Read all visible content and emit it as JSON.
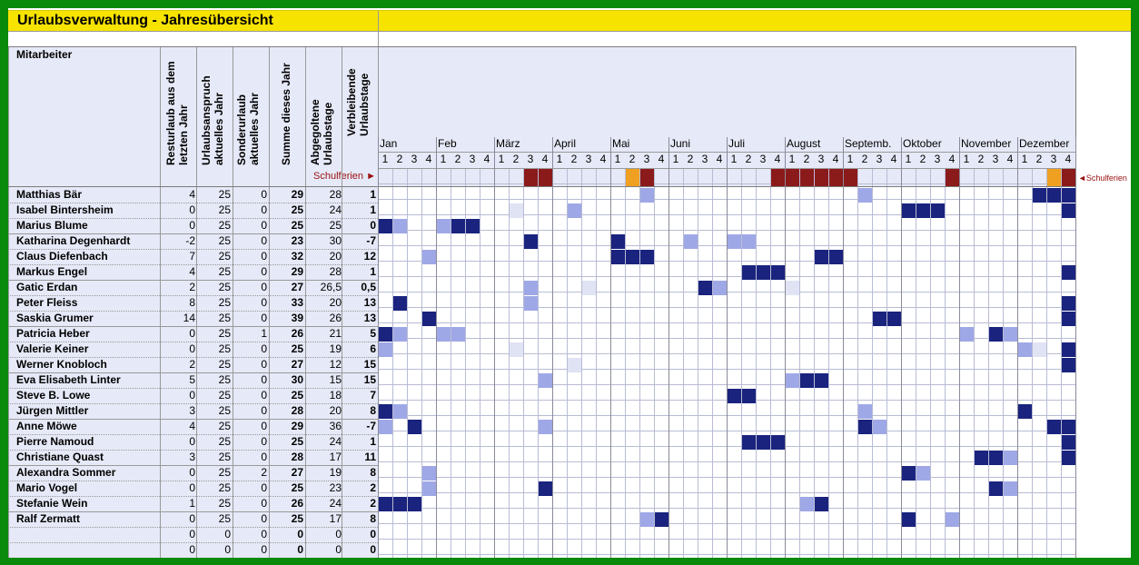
{
  "title": "Urlaubsverwaltung - Jahresübersicht",
  "headers": {
    "mitarbeiter": "Mitarbeiter",
    "resturlaub": [
      "Resturlaub aus dem",
      "letzten Jahr"
    ],
    "anspruch": [
      "Urlaubsanspruch",
      "aktuelles Jahr"
    ],
    "sonder": [
      "Sonderurlaub",
      "aktuelles Jahr"
    ],
    "summe": [
      "Summe dieses Jahr"
    ],
    "abgegolten": [
      "Abgegoltene",
      "Urlaubstage"
    ],
    "verbleibend": [
      "Verbleibende",
      "Urlaubstage"
    ]
  },
  "schulferien_label": "Schulferien ►",
  "schulferien_label_right": "◄Schulferien",
  "months": [
    "Jan",
    "Feb",
    "März",
    "April",
    "Mai",
    "Juni",
    "Juli",
    "August",
    "Septemb.",
    "Oktober",
    "November",
    "Dezember"
  ],
  "week_labels": [
    "1",
    "2",
    "3",
    "4",
    "1",
    "2",
    "3",
    "4",
    "1",
    "2",
    "3",
    "4",
    "1",
    "2",
    "3",
    "4",
    "1",
    "2",
    "3",
    "4",
    "1",
    "2",
    "3",
    "4",
    "1",
    "2",
    "3",
    "4",
    "1",
    "2",
    "3",
    "4",
    "1",
    "2",
    "3",
    "4",
    "1",
    "2",
    "3",
    "4",
    "1",
    "2",
    "3",
    "4",
    "1",
    "2",
    "3",
    "4"
  ],
  "colors": {
    "schulferien": "#8b1a1a",
    "schulferien_orange": "#f0a020",
    "urlaub_dark": "#1a237e",
    "urlaub_light": "#9fa8e6",
    "urlaub_faint": "#e0e3f4"
  },
  "schulferien_weeks": [
    {
      "week": 10,
      "type": "dark"
    },
    {
      "week": 11,
      "type": "dark"
    },
    {
      "week": 17,
      "type": "orange"
    },
    {
      "week": 18,
      "type": "dark"
    },
    {
      "week": 27,
      "type": "dark"
    },
    {
      "week": 28,
      "type": "dark"
    },
    {
      "week": 29,
      "type": "dark"
    },
    {
      "week": 30,
      "type": "dark"
    },
    {
      "week": 31,
      "type": "dark"
    },
    {
      "week": 32,
      "type": "dark"
    },
    {
      "week": 39,
      "type": "dark"
    },
    {
      "week": 46,
      "type": "orange"
    },
    {
      "week": 47,
      "type": "dark"
    }
  ],
  "employees": [
    {
      "name": "Matthias Bär",
      "rest": "4",
      "anspruch": "25",
      "sonder": "0",
      "summe": "29",
      "abgegolten": "28",
      "verbleibend": "1",
      "dark": [
        45,
        46,
        47
      ],
      "light": [
        18,
        33
      ],
      "faint": []
    },
    {
      "name": "Isabel Bintersheim",
      "rest": "0",
      "anspruch": "25",
      "sonder": "0",
      "summe": "25",
      "abgegolten": "24",
      "verbleibend": "1",
      "dark": [
        36,
        37,
        38,
        47
      ],
      "light": [
        13
      ],
      "faint": [
        9
      ]
    },
    {
      "name": "Marius Blume",
      "rest": "0",
      "anspruch": "25",
      "sonder": "0",
      "summe": "25",
      "abgegolten": "25",
      "verbleibend": "0",
      "dark": [
        0,
        5,
        6
      ],
      "light": [
        1,
        4
      ],
      "faint": []
    },
    {
      "name": "Katharina Degenhardt",
      "rest": "-2",
      "anspruch": "25",
      "sonder": "0",
      "summe": "23",
      "abgegolten": "30",
      "verbleibend": "-7",
      "dark": [
        10,
        16
      ],
      "light": [
        21,
        24,
        25
      ],
      "faint": []
    },
    {
      "name": "Claus Diefenbach",
      "rest": "7",
      "anspruch": "25",
      "sonder": "0",
      "summe": "32",
      "abgegolten": "20",
      "verbleibend": "12",
      "dark": [
        16,
        17,
        18,
        30,
        31
      ],
      "light": [
        3
      ],
      "faint": []
    },
    {
      "name": "Markus Engel",
      "rest": "4",
      "anspruch": "25",
      "sonder": "0",
      "summe": "29",
      "abgegolten": "28",
      "verbleibend": "1",
      "dark": [
        25,
        26,
        27,
        47
      ],
      "light": [],
      "faint": []
    },
    {
      "name": "Gatic Erdan",
      "rest": "2",
      "anspruch": "25",
      "sonder": "0",
      "summe": "27",
      "abgegolten": "26,5",
      "verbleibend": "0,5",
      "dark": [
        22
      ],
      "light": [
        10,
        23
      ],
      "faint": [
        14,
        28
      ]
    },
    {
      "name": "Peter Fleiss",
      "rest": "8",
      "anspruch": "25",
      "sonder": "0",
      "summe": "33",
      "abgegolten": "20",
      "verbleibend": "13",
      "dark": [
        1,
        47
      ],
      "light": [
        10
      ],
      "faint": []
    },
    {
      "name": "Saskia Grumer",
      "rest": "14",
      "anspruch": "25",
      "sonder": "0",
      "summe": "39",
      "abgegolten": "26",
      "verbleibend": "13",
      "dark": [
        3,
        34,
        35,
        47
      ],
      "light": [],
      "faint": []
    },
    {
      "name": "Patricia Heber",
      "rest": "0",
      "anspruch": "25",
      "sonder": "1",
      "summe": "26",
      "abgegolten": "21",
      "verbleibend": "5",
      "dark": [
        0,
        42
      ],
      "light": [
        1,
        4,
        5,
        40,
        43
      ],
      "faint": []
    },
    {
      "name": "Valerie Keiner",
      "rest": "0",
      "anspruch": "25",
      "sonder": "0",
      "summe": "25",
      "abgegolten": "19",
      "verbleibend": "6",
      "dark": [
        47
      ],
      "light": [
        0,
        44
      ],
      "faint": [
        9,
        45
      ]
    },
    {
      "name": "Werner Knobloch",
      "rest": "2",
      "anspruch": "25",
      "sonder": "0",
      "summe": "27",
      "abgegolten": "12",
      "verbleibend": "15",
      "dark": [
        47
      ],
      "light": [],
      "faint": [
        13
      ]
    },
    {
      "name": "Eva Elisabeth Linter",
      "rest": "5",
      "anspruch": "25",
      "sonder": "0",
      "summe": "30",
      "abgegolten": "15",
      "verbleibend": "15",
      "dark": [
        29,
        30
      ],
      "light": [
        11,
        28
      ],
      "faint": []
    },
    {
      "name": "Steve B. Lowe",
      "rest": "0",
      "anspruch": "25",
      "sonder": "0",
      "summe": "25",
      "abgegolten": "18",
      "verbleibend": "7",
      "dark": [
        24,
        25
      ],
      "light": [],
      "faint": []
    },
    {
      "name": "Jürgen Mittler",
      "rest": "3",
      "anspruch": "25",
      "sonder": "0",
      "summe": "28",
      "abgegolten": "20",
      "verbleibend": "8",
      "dark": [
        0,
        44
      ],
      "light": [
        1,
        33
      ],
      "faint": []
    },
    {
      "name": "Anne Möwe",
      "rest": "4",
      "anspruch": "25",
      "sonder": "0",
      "summe": "29",
      "abgegolten": "36",
      "verbleibend": "-7",
      "dark": [
        2,
        33,
        46,
        47
      ],
      "light": [
        0,
        11,
        34
      ],
      "faint": []
    },
    {
      "name": "Pierre Namoud",
      "rest": "0",
      "anspruch": "25",
      "sonder": "0",
      "summe": "25",
      "abgegolten": "24",
      "verbleibend": "1",
      "dark": [
        25,
        26,
        27,
        47
      ],
      "light": [],
      "faint": []
    },
    {
      "name": "Christiane Quast",
      "rest": "3",
      "anspruch": "25",
      "sonder": "0",
      "summe": "28",
      "abgegolten": "17",
      "verbleibend": "11",
      "dark": [
        41,
        42,
        47
      ],
      "light": [
        43
      ],
      "faint": []
    },
    {
      "name": "Alexandra Sommer",
      "rest": "0",
      "anspruch": "25",
      "sonder": "2",
      "summe": "27",
      "abgegolten": "19",
      "verbleibend": "8",
      "dark": [
        36
      ],
      "light": [
        3,
        37
      ],
      "faint": []
    },
    {
      "name": "Mario Vogel",
      "rest": "0",
      "anspruch": "25",
      "sonder": "0",
      "summe": "25",
      "abgegolten": "23",
      "verbleibend": "2",
      "dark": [
        11,
        42
      ],
      "light": [
        3,
        43
      ],
      "faint": []
    },
    {
      "name": "Stefanie Wein",
      "rest": "1",
      "anspruch": "25",
      "sonder": "0",
      "summe": "26",
      "abgegolten": "24",
      "verbleibend": "2",
      "dark": [
        0,
        1,
        2,
        30
      ],
      "light": [
        29
      ],
      "faint": []
    },
    {
      "name": "Ralf Zermatt",
      "rest": "0",
      "anspruch": "25",
      "sonder": "0",
      "summe": "25",
      "abgegolten": "17",
      "verbleibend": "8",
      "dark": [
        19,
        36
      ],
      "light": [
        18,
        39
      ],
      "faint": []
    },
    {
      "name": "",
      "rest": "0",
      "anspruch": "0",
      "sonder": "0",
      "summe": "0",
      "abgegolten": "0",
      "verbleibend": "0",
      "dark": [],
      "light": [],
      "faint": []
    },
    {
      "name": "",
      "rest": "0",
      "anspruch": "0",
      "sonder": "0",
      "summe": "0",
      "abgegolten": "0",
      "verbleibend": "0",
      "dark": [],
      "light": [],
      "faint": []
    }
  ]
}
